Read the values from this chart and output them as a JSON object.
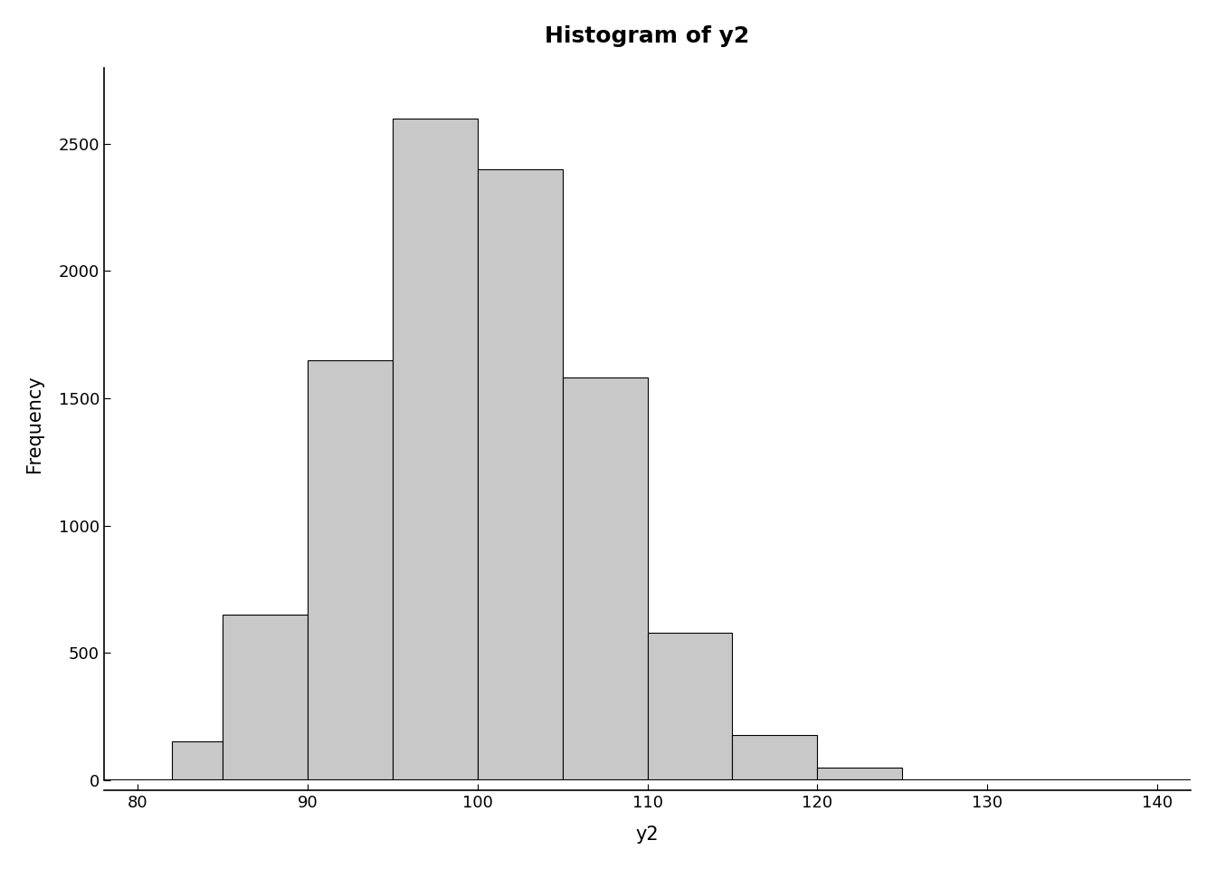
{
  "title": "Histogram of y2",
  "xlabel": "y2",
  "ylabel": "Frequency",
  "bar_edges": [
    82,
    85,
    90,
    95,
    100,
    105,
    110,
    115,
    120,
    125
  ],
  "bar_heights": [
    150,
    650,
    1650,
    2600,
    2400,
    1580,
    580,
    175,
    50
  ],
  "bar_color": "#c8c8c8",
  "bar_edgecolor": "#000000",
  "xlim": [
    78,
    142
  ],
  "ylim": [
    0,
    2800
  ],
  "xticks": [
    80,
    90,
    100,
    110,
    120,
    130,
    140
  ],
  "yticks": [
    0,
    500,
    1000,
    1500,
    2000,
    2500
  ],
  "title_fontsize": 18,
  "label_fontsize": 15,
  "tick_fontsize": 13,
  "background_color": "#ffffff",
  "figsize": [
    13.44,
    9.6
  ],
  "dpi": 100
}
